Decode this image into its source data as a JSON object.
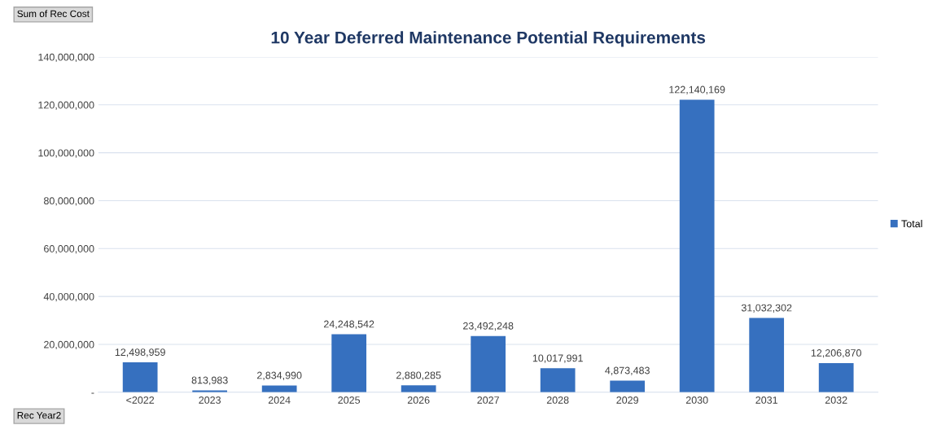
{
  "chart_data": {
    "type": "bar",
    "title": "10 Year Deferred Maintenance Potential Requirements",
    "categories": [
      "<2022",
      "2023",
      "2024",
      "2025",
      "2026",
      "2027",
      "2028",
      "2029",
      "2030",
      "2031",
      "2032"
    ],
    "series": [
      {
        "name": "Total",
        "color": "#3670bf",
        "values": [
          12498959,
          813983,
          2834990,
          24248542,
          2880285,
          23492248,
          10017991,
          4873483,
          122140169,
          31032302,
          12206870
        ],
        "value_labels": [
          "12,498,959",
          "813,983",
          "2,834,990",
          "24,248,542",
          "2,880,285",
          "23,492,248",
          "10,017,991",
          "4,873,483",
          "122,140,169",
          "31,032,302",
          "12,206,870"
        ]
      }
    ],
    "ylim": [
      0,
      140000000
    ],
    "yticks": [
      {
        "value": 0,
        "label": "-"
      },
      {
        "value": 20000000,
        "label": "20,000,000"
      },
      {
        "value": 40000000,
        "label": "40,000,000"
      },
      {
        "value": 60000000,
        "label": "60,000,000"
      },
      {
        "value": 80000000,
        "label": "80,000,000"
      },
      {
        "value": 100000000,
        "label": "100,000,000"
      },
      {
        "value": 120000000,
        "label": "120,000,000"
      },
      {
        "value": 140000000,
        "label": "140,000,000"
      }
    ],
    "grid": "y",
    "legend": "right",
    "annotations": [
      "Sum of Rec Cost",
      "Rec Year2"
    ]
  }
}
